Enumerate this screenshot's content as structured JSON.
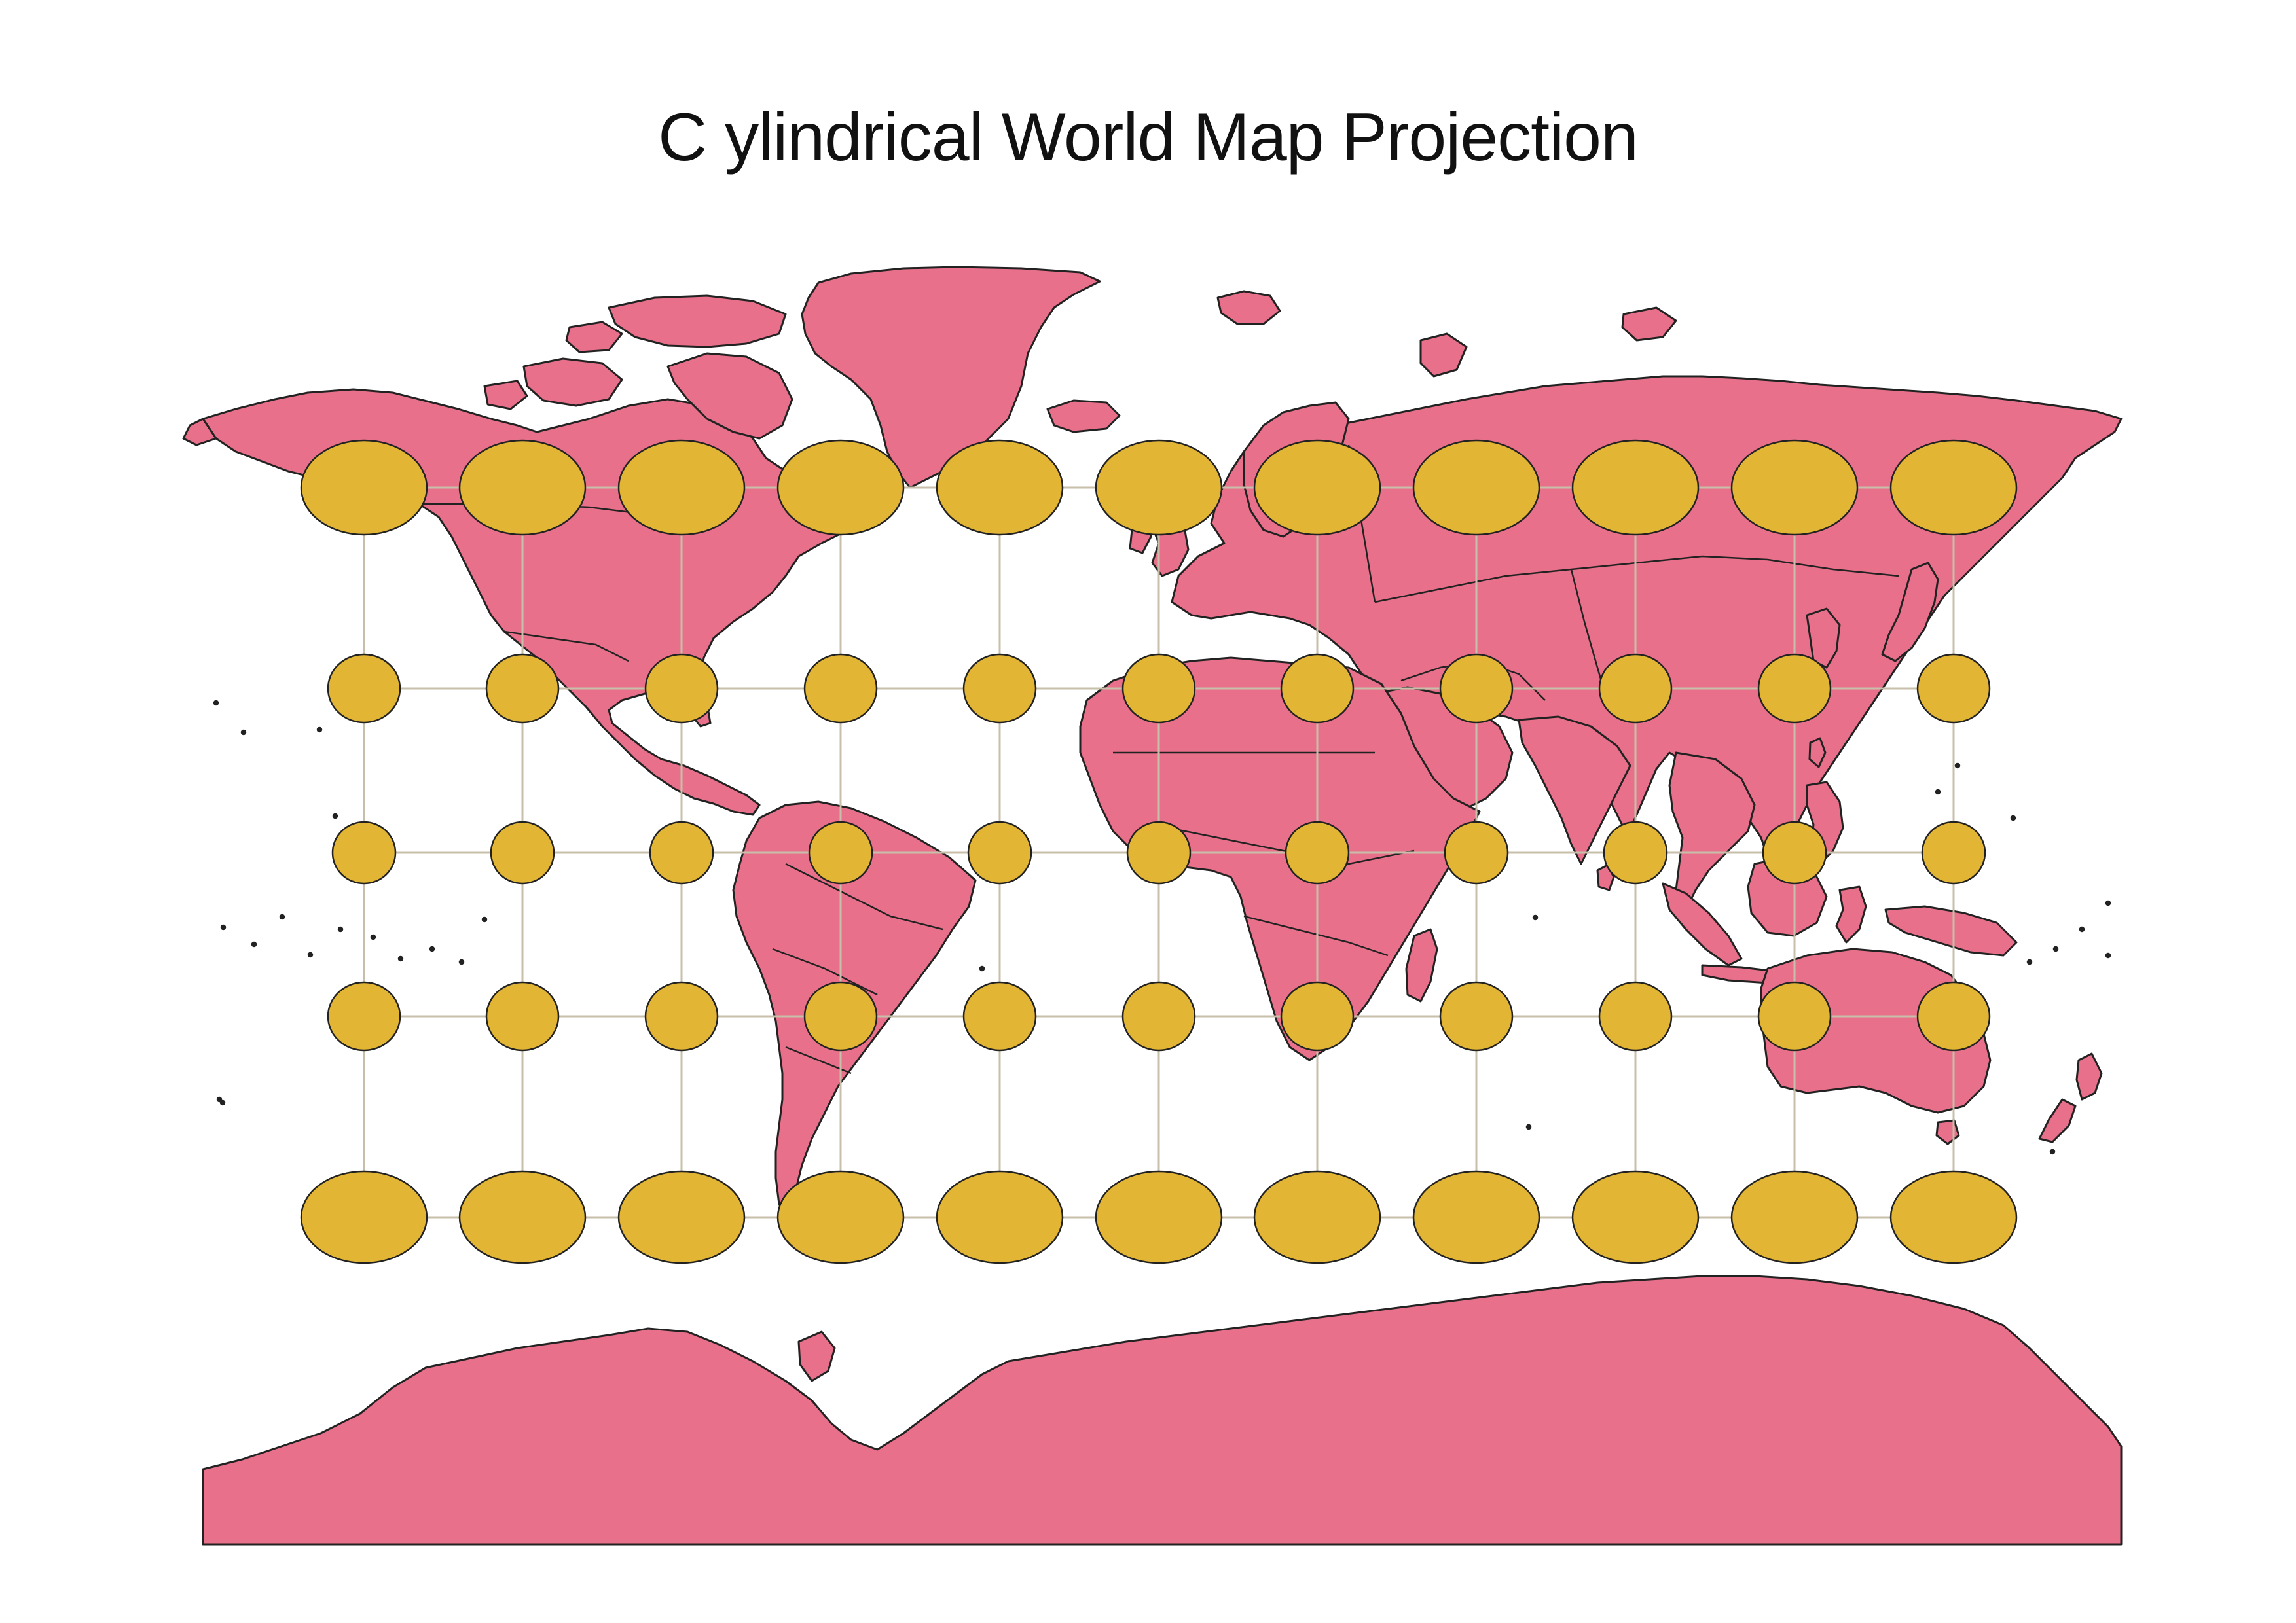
{
  "title": "C ylindrical World Map Projection",
  "colors": {
    "land": "#e8708a",
    "indicatrix": "#e3b535",
    "coastline": "#222222",
    "graticule": "#c8bfaa",
    "background": "#ffffff"
  },
  "map": {
    "projection": "cylindrical",
    "lon_range": [
      -180,
      180
    ],
    "lat_range": [
      -90,
      90
    ],
    "graticule": {
      "longitudes": [
        -150,
        -120,
        -90,
        -60,
        -30,
        0,
        30,
        60,
        90,
        120,
        150
      ],
      "latitudes": [
        60,
        30,
        0,
        -30,
        -60
      ]
    },
    "tissot_indicatrix": {
      "shape": "ellipse",
      "longitudes": [
        -150,
        -120,
        -90,
        -60,
        -30,
        0,
        30,
        60,
        90,
        120,
        150
      ],
      "latitudes": [
        60,
        30,
        0,
        -30,
        -60
      ],
      "count": 55
    }
  }
}
